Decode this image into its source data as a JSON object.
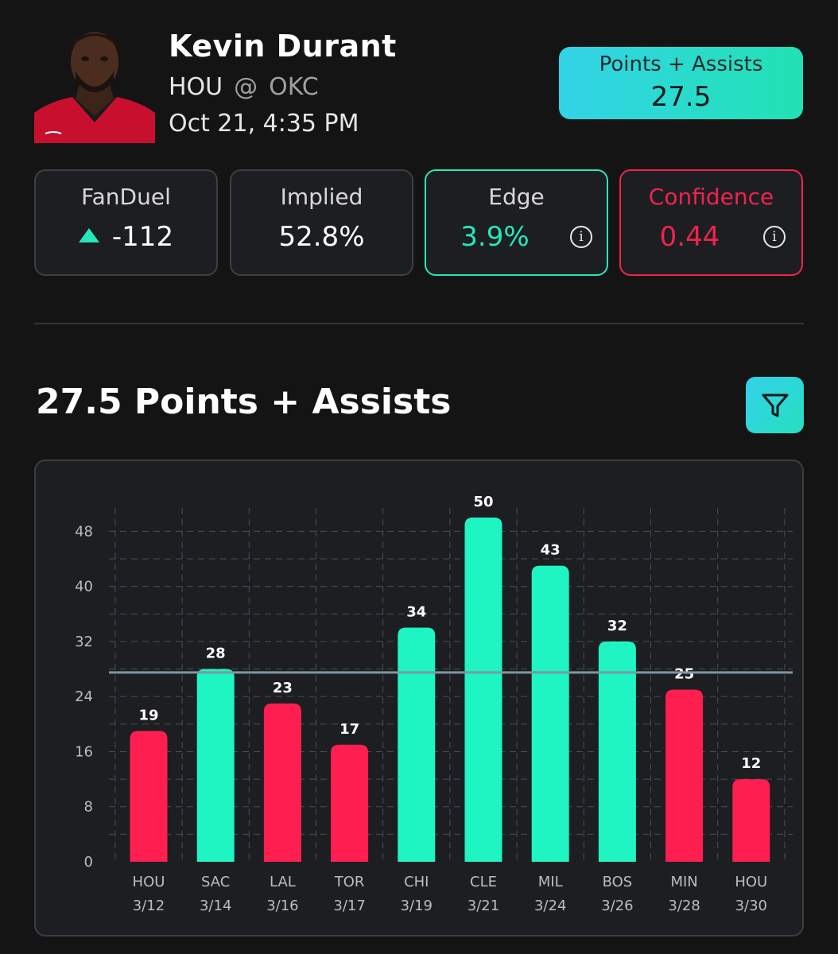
{
  "player": {
    "name": "Kevin Durant",
    "away": "HOU",
    "at": "@",
    "home": "OKC",
    "datetime": "Oct 21, 4:35 PM"
  },
  "prop": {
    "label": "Points + Assists",
    "line": "27.5"
  },
  "cards": {
    "fanduel": {
      "label": "FanDuel",
      "value": "-112",
      "trend": "up"
    },
    "implied": {
      "label": "Implied",
      "value": "52.8%"
    },
    "edge": {
      "label": "Edge",
      "value": "3.9%"
    },
    "confidence": {
      "label": "Confidence",
      "value": "0.44"
    }
  },
  "section": {
    "title": "27.5 Points + Assists"
  },
  "colors": {
    "over": "#1ff5c2",
    "under": "#ff1e50",
    "accent": "#26e7b9",
    "line": "#7f97a3"
  },
  "chart_data": {
    "type": "bar",
    "categories": [
      "HOU",
      "SAC",
      "LAL",
      "TOR",
      "CHI",
      "CLE",
      "MIL",
      "BOS",
      "MIN",
      "HOU"
    ],
    "dates": [
      "3/12",
      "3/14",
      "3/16",
      "3/17",
      "3/19",
      "3/21",
      "3/24",
      "3/26",
      "3/28",
      "3/30"
    ],
    "values": [
      19,
      28,
      23,
      17,
      34,
      50,
      43,
      32,
      25,
      12
    ],
    "threshold": 27.5,
    "yticks": [
      0,
      8,
      16,
      24,
      32,
      40,
      48
    ],
    "ylim": [
      0,
      50
    ],
    "grid": true
  }
}
